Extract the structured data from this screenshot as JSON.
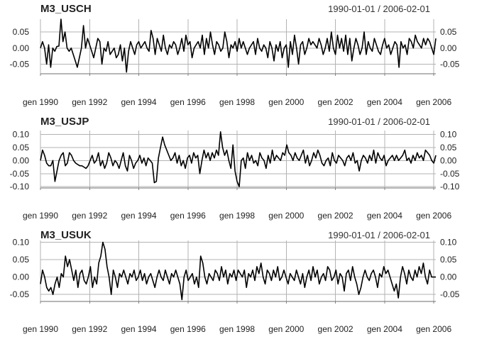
{
  "chart_data": [
    {
      "type": "line",
      "title": "M3_USCH",
      "subtitle": "1990-01-01 / 2006-02-01",
      "x_start": "1990-01",
      "x_end": "2006-02",
      "ylim": [
        -0.08,
        0.09
      ],
      "yticks": [
        "0.05",
        "0.00",
        "-0.05"
      ],
      "ytick_values": [
        0.05,
        0.0,
        -0.05
      ],
      "xticks": [
        "gen 1990",
        "gen 1992",
        "gen 1994",
        "gen 1996",
        "gen 1998",
        "gen 2000",
        "gen 2002",
        "gen 2004",
        "gen 2006"
      ],
      "xtick_values": [
        "1990-01",
        "1992-01",
        "1994-01",
        "1996-01",
        "1998-01",
        "2000-01",
        "2002-01",
        "2004-01",
        "2006-01"
      ],
      "grid": true,
      "series": [
        {
          "values": [
            0.0,
            0.02,
            0.0,
            -0.05,
            0.01,
            -0.06,
            0.0,
            -0.01,
            0.005,
            0.006,
            0.09,
            0.02,
            0.05,
            0.0,
            -0.01,
            0.0,
            -0.02,
            -0.04,
            -0.06,
            -0.03,
            0.0,
            0.07,
            0.0,
            0.03,
            0.01,
            -0.01,
            -0.03,
            0.0,
            0.03,
            0.02,
            -0.05,
            0.0,
            -0.01,
            0.02,
            -0.02,
            -0.01,
            0.0,
            -0.03,
            -0.02,
            0.01,
            -0.04,
            0.0,
            -0.075,
            -0.01,
            0.02,
            0.0,
            -0.02,
            0.01,
            0.02,
            0.0,
            0.01,
            0.02,
            0.0,
            -0.01,
            0.055,
            0.03,
            -0.02,
            0.03,
            0.01,
            -0.01,
            0.04,
            0.0,
            -0.02,
            0.01,
            0.0,
            0.02,
            0.01,
            -0.02,
            0.0,
            0.03,
            -0.01,
            0.04,
            0.01,
            0.02,
            -0.03,
            0.0,
            0.01,
            0.02,
            0.0,
            0.04,
            -0.02,
            0.03,
            0.0,
            0.05,
            0.01,
            -0.02,
            0.02,
            0.01,
            -0.01,
            0.0,
            0.05,
            0.02,
            -0.03,
            0.01,
            0.0,
            0.02,
            -0.01,
            0.03,
            0.0,
            0.02,
            0.0,
            -0.02,
            0.0,
            0.01,
            0.02,
            -0.02,
            0.03,
            0.0,
            -0.01,
            0.01,
            0.0,
            -0.03,
            0.02,
            0.0,
            -0.04,
            0.01,
            -0.01,
            0.02,
            -0.03,
            0.0,
            0.01,
            -0.06,
            0.02,
            -0.02,
            0.04,
            0.0,
            -0.05,
            0.01,
            0.02,
            -0.02,
            0.0,
            0.03,
            0.01,
            0.02,
            0.01,
            0.0,
            0.03,
            0.01,
            -0.02,
            0.0,
            0.03,
            -0.01,
            0.05,
            0.0,
            -0.02,
            0.04,
            0.0,
            0.03,
            -0.01,
            0.04,
            -0.02,
            0.03,
            -0.04,
            0.0,
            0.03,
            0.01,
            -0.02,
            0.0,
            0.05,
            -0.02,
            0.02,
            0.0,
            -0.01,
            0.03,
            0.01,
            -0.01,
            -0.02,
            0.01,
            0.03,
            0.0,
            0.01,
            -0.02,
            0.0,
            0.02,
            0.01,
            -0.06,
            0.02,
            0.0,
            0.01,
            -0.02,
            0.03,
            0.02,
            0.0,
            0.04,
            0.02,
            0.01,
            0.0,
            0.03,
            0.01,
            0.03,
            0.02,
            0.0,
            -0.02,
            0.03
          ]
        }
      ]
    },
    {
      "type": "line",
      "title": "M3_USJP",
      "subtitle": "1990-01-01 / 2006-02-01",
      "x_start": "1990-01",
      "x_end": "2006-02",
      "ylim": [
        -0.105,
        0.115
      ],
      "yticks": [
        "0.10",
        "0.05",
        "0.00",
        "-0.05",
        "-0.10"
      ],
      "ytick_values": [
        0.1,
        0.05,
        0.0,
        -0.05,
        -0.1
      ],
      "xticks": [
        "gen 1990",
        "gen 1992",
        "gen 1994",
        "gen 1996",
        "gen 1998",
        "gen 2000",
        "gen 2002",
        "gen 2004",
        "gen 2006"
      ],
      "xtick_values": [
        "1990-01",
        "1992-01",
        "1994-01",
        "1996-01",
        "1998-01",
        "2000-01",
        "2002-01",
        "2004-01",
        "2006-01"
      ],
      "grid": true,
      "series": [
        {
          "values": [
            0.0,
            0.04,
            0.02,
            -0.01,
            -0.02,
            -0.02,
            0.0,
            -0.08,
            -0.04,
            0.0,
            0.02,
            0.03,
            -0.02,
            -0.01,
            0.03,
            0.02,
            0.0,
            -0.01,
            -0.015,
            -0.02,
            -0.02,
            -0.025,
            -0.03,
            -0.02,
            0.0,
            0.02,
            -0.01,
            0.0,
            0.03,
            -0.02,
            0.0,
            -0.03,
            -0.01,
            0.03,
            0.01,
            -0.02,
            0.0,
            -0.01,
            -0.03,
            0.0,
            0.03,
            -0.02,
            -0.04,
            0.02,
            0.0,
            -0.03,
            -0.01,
            0.0,
            0.02,
            -0.01,
            0.01,
            -0.02,
            0.01,
            0.0,
            -0.01,
            -0.085,
            -0.08,
            0.01,
            0.05,
            0.09,
            0.06,
            0.04,
            0.02,
            0.0,
            0.01,
            0.03,
            -0.01,
            0.02,
            -0.02,
            0.0,
            -0.03,
            0.01,
            0.02,
            -0.01,
            0.03,
            0.01,
            0.02,
            -0.05,
            0.0,
            0.04,
            0.01,
            0.03,
            0.0,
            0.03,
            0.01,
            0.04,
            0.02,
            0.11,
            0.05,
            0.02,
            0.04,
            0.0,
            -0.03,
            0.06,
            -0.04,
            -0.08,
            -0.1,
            0.0,
            0.01,
            -0.03,
            0.03,
            0.0,
            0.02,
            -0.01,
            0.0,
            -0.02,
            0.03,
            0.01,
            0.0,
            -0.03,
            0.02,
            -0.01,
            0.04,
            0.0,
            0.02,
            0.01,
            0.0,
            0.03,
            0.02,
            0.06,
            0.03,
            0.02,
            0.0,
            0.03,
            0.01,
            0.0,
            0.02,
            0.04,
            -0.01,
            0.02,
            -0.02,
            0.0,
            0.03,
            0.01,
            0.04,
            0.02,
            -0.01,
            -0.02,
            0.0,
            0.01,
            -0.02,
            0.03,
            0.0,
            -0.01,
            0.02,
            0.01,
            0.0,
            -0.02,
            0.01,
            0.02,
            0.0,
            0.03,
            -0.01,
            0.0,
            -0.04,
            0.0,
            0.02,
            0.01,
            -0.01,
            0.02,
            0.0,
            0.04,
            -0.01,
            0.03,
            0.01,
            0.0,
            0.02,
            -0.02,
            0.0,
            0.01,
            0.02,
            0.0,
            0.02,
            0.0,
            0.01,
            0.02,
            0.04,
            0.0,
            0.01,
            -0.01,
            0.02,
            0.0,
            0.03,
            0.01,
            0.02,
            0.0,
            0.04,
            0.03,
            0.02,
            0.0,
            -0.01,
            0.02
          ]
        }
      ]
    },
    {
      "type": "line",
      "title": "M3_USUK",
      "subtitle": "1990-01-01 / 2006-02-01",
      "x_start": "1990-01",
      "x_end": "2006-02",
      "ylim": [
        -0.07,
        0.105
      ],
      "yticks": [
        "0.10",
        "0.05",
        "0.00",
        "-0.05"
      ],
      "ytick_values": [
        0.1,
        0.05,
        0.0,
        -0.05
      ],
      "xticks": [
        "gen 1990",
        "gen 1992",
        "gen 1994",
        "gen 1996",
        "gen 1998",
        "gen 2000",
        "gen 2002",
        "gen 2004",
        "gen 2006"
      ],
      "xtick_values": [
        "1990-01",
        "1992-01",
        "1994-01",
        "1996-01",
        "1998-01",
        "2000-01",
        "2002-01",
        "2004-01",
        "2006-01"
      ],
      "grid": true,
      "series": [
        {
          "values": [
            -0.02,
            0.02,
            0.0,
            -0.03,
            -0.04,
            -0.03,
            -0.05,
            -0.02,
            0.0,
            -0.03,
            0.01,
            0.0,
            0.06,
            0.03,
            0.05,
            0.02,
            -0.01,
            0.02,
            -0.03,
            0.01,
            0.02,
            -0.01,
            -0.02,
            0.0,
            0.03,
            -0.03,
            0.0,
            -0.02,
            0.04,
            0.06,
            0.1,
            0.08,
            0.03,
            0.0,
            -0.05,
            0.02,
            0.0,
            -0.03,
            0.01,
            0.0,
            0.02,
            0.0,
            -0.02,
            0.01,
            0.0,
            0.02,
            -0.01,
            0.0,
            0.02,
            -0.01,
            0.01,
            -0.02,
            0.0,
            0.01,
            -0.01,
            -0.03,
            0.0,
            0.02,
            0.0,
            -0.01,
            0.02,
            0.0,
            -0.02,
            0.01,
            0.0,
            0.02,
            0.0,
            -0.02,
            -0.065,
            0.0,
            0.02,
            -0.01,
            0.0,
            0.01,
            -0.02,
            0.0,
            -0.03,
            0.06,
            0.04,
            0.0,
            -0.02,
            0.01,
            0.0,
            -0.01,
            0.02,
            0.01,
            -0.01,
            0.03,
            0.0,
            0.02,
            -0.02,
            0.01,
            0.0,
            0.02,
            -0.01,
            0.02,
            0.01,
            0.0,
            0.02,
            -0.03,
            0.01,
            0.0,
            0.02,
            -0.01,
            0.03,
            0.01,
            0.04,
            0.0,
            -0.02,
            0.02,
            0.01,
            -0.01,
            0.02,
            0.0,
            0.03,
            -0.01,
            0.0,
            0.02,
            0.0,
            -0.02,
            0.01,
            0.0,
            -0.01,
            0.02,
            0.0,
            -0.02,
            0.01,
            -0.03,
            0.0,
            0.02,
            -0.01,
            0.03,
            0.0,
            0.02,
            -0.02,
            0.0,
            0.01,
            -0.01,
            0.03,
            0.02,
            -0.01,
            0.0,
            0.02,
            -0.02,
            0.01,
            0.0,
            -0.04,
            0.01,
            0.02,
            -0.01,
            0.03,
            0.0,
            -0.02,
            -0.05,
            -0.03,
            0.0,
            0.02,
            0.0,
            -0.01,
            0.01,
            0.02,
            0.0,
            -0.03,
            0.01,
            0.0,
            0.03,
            0.01,
            0.02,
            0.0,
            -0.02,
            -0.04,
            -0.02,
            -0.06,
            0.0,
            0.03,
            0.01,
            -0.02,
            0.02,
            0.0,
            -0.01,
            0.02,
            0.0,
            0.03,
            0.01,
            0.04,
            0.0,
            -0.02,
            0.02,
            0.0,
            0.0,
            0.0
          ]
        }
      ]
    }
  ]
}
